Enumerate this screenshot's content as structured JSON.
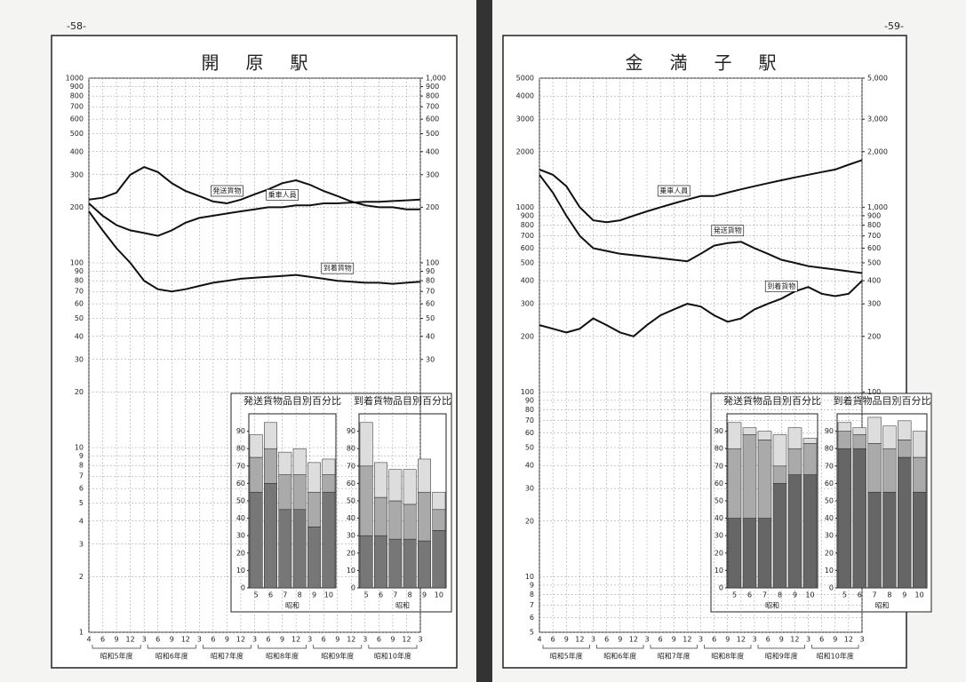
{
  "pages": [
    "-58-",
    "-59-"
  ],
  "chart_data": [
    {
      "type": "line",
      "title": "開原駅",
      "log_y": true,
      "grid": true,
      "categories": [
        "4",
        "6",
        "9",
        "12",
        "3",
        "6",
        "9",
        "12",
        "3",
        "6",
        "9",
        "12",
        "3",
        "6",
        "9",
        "12",
        "3",
        "6",
        "9",
        "12",
        "3",
        "6",
        "9",
        "12",
        "3"
      ],
      "periods": [
        "昭和5年度",
        "昭和6年度",
        "昭和7年度",
        "昭和8年度",
        "昭和9年度",
        "昭和10年度"
      ],
      "ylim": [
        1,
        1000
      ],
      "y2lim": [
        1,
        1000
      ],
      "yticks": [
        1000,
        900,
        800,
        700,
        600,
        500,
        400,
        300,
        200,
        100,
        90,
        80,
        70,
        60,
        50,
        40,
        30,
        20,
        10,
        9,
        8,
        7,
        6,
        5,
        4,
        3,
        2,
        1
      ],
      "y2ticks": [
        {
          "value": 1000,
          "label": "1,000"
        },
        900,
        800,
        700,
        600,
        500,
        400,
        300,
        200,
        100,
        90,
        80,
        70,
        60,
        50,
        40,
        30
      ],
      "series": [
        {
          "name": "発送貨物",
          "color": "#111",
          "values": [
            220,
            225,
            240,
            300,
            330,
            310,
            270,
            245,
            230,
            215,
            210,
            220,
            235,
            250,
            270,
            280,
            265,
            245,
            230,
            215,
            205,
            200,
            200,
            195,
            195
          ]
        },
        {
          "name": "乗車人員",
          "color": "#111",
          "values": [
            210,
            180,
            160,
            150,
            145,
            140,
            150,
            165,
            175,
            180,
            185,
            190,
            195,
            200,
            200,
            205,
            205,
            210,
            210,
            212,
            214,
            214,
            216,
            218,
            220
          ]
        },
        {
          "name": "到着貨物",
          "color": "#111",
          "values": [
            190,
            150,
            120,
            100,
            80,
            72,
            70,
            72,
            75,
            78,
            80,
            82,
            83,
            84,
            85,
            86,
            84,
            82,
            80,
            79,
            78,
            78,
            77,
            78,
            79
          ]
        }
      ]
    },
    {
      "type": "line",
      "title": "金満子駅",
      "log_y": true,
      "grid": true,
      "categories": [
        "4",
        "6",
        "9",
        "12",
        "3",
        "6",
        "9",
        "12",
        "3",
        "6",
        "9",
        "12",
        "3",
        "6",
        "9",
        "12",
        "3",
        "6",
        "9",
        "12",
        "3",
        "6",
        "9",
        "12",
        "3"
      ],
      "periods": [
        "昭和5年度",
        "昭和6年度",
        "昭和7年度",
        "昭和8年度",
        "昭和9年度",
        "昭和10年度"
      ],
      "ylim": [
        5,
        5000
      ],
      "y2lim": [
        5,
        5000
      ],
      "yticks": [
        5000,
        4000,
        3000,
        2000,
        1000,
        900,
        800,
        700,
        600,
        500,
        400,
        300,
        200,
        100,
        90,
        80,
        70,
        60,
        50,
        40,
        30,
        20,
        10,
        9,
        8,
        7,
        6,
        5
      ],
      "y2ticks": [
        {
          "value": 5000,
          "label": "5,000"
        },
        {
          "value": 3000,
          "label": "3,000"
        },
        {
          "value": 2000,
          "label": "2,000"
        },
        {
          "value": 1000,
          "label": "1,000"
        },
        900,
        800,
        700,
        600,
        500,
        400,
        300,
        200,
        100
      ],
      "series": [
        {
          "name": "乗車人員",
          "color": "#111",
          "values": [
            1600,
            1500,
            1300,
            1000,
            850,
            830,
            850,
            900,
            950,
            1000,
            1050,
            1100,
            1150,
            1150,
            1200,
            1250,
            1300,
            1350,
            1400,
            1450,
            1500,
            1550,
            1600,
            1700,
            1800
          ]
        },
        {
          "name": "発送貨物",
          "color": "#111",
          "values": [
            1500,
            1200,
            900,
            700,
            600,
            580,
            560,
            550,
            540,
            530,
            520,
            510,
            560,
            620,
            640,
            650,
            600,
            560,
            520,
            500,
            480,
            470,
            460,
            450,
            440
          ]
        },
        {
          "name": "到着貨物",
          "color": "#111",
          "values": [
            230,
            220,
            210,
            220,
            250,
            230,
            210,
            200,
            230,
            260,
            280,
            300,
            290,
            260,
            240,
            250,
            280,
            300,
            320,
            350,
            370,
            340,
            330,
            340,
            400
          ]
        }
      ]
    },
    {
      "type": "bar",
      "stacked": true,
      "title": "発送貨物品目別百分比",
      "xlabel": "昭和",
      "categories": [
        "5",
        "6",
        "7",
        "8",
        "9",
        "10"
      ],
      "ylim": [
        0,
        100
      ],
      "yticks": [
        0,
        10,
        20,
        30,
        40,
        50,
        60,
        70,
        80,
        90
      ],
      "series": [
        {
          "color": "#777",
          "values": [
            55,
            60,
            45,
            45,
            35,
            55
          ]
        },
        {
          "color": "#aaa",
          "values": [
            20,
            20,
            20,
            20,
            20,
            10
          ]
        },
        {
          "color": "#ddd",
          "values": [
            13,
            15,
            13,
            15,
            17,
            9
          ]
        }
      ]
    },
    {
      "type": "bar",
      "stacked": true,
      "title": "到着貨物品目別百分比",
      "xlabel": "昭和",
      "categories": [
        "5",
        "6",
        "7",
        "8",
        "9",
        "10"
      ],
      "ylim": [
        0,
        100
      ],
      "yticks": [
        0,
        10,
        20,
        30,
        40,
        50,
        60,
        70,
        80,
        90
      ],
      "series": [
        {
          "color": "#777",
          "values": [
            30,
            30,
            28,
            28,
            27,
            33
          ]
        },
        {
          "color": "#aaa",
          "values": [
            40,
            22,
            22,
            20,
            28,
            12
          ]
        },
        {
          "color": "#ddd",
          "values": [
            25,
            20,
            18,
            20,
            19,
            10
          ]
        }
      ]
    },
    {
      "type": "bar",
      "stacked": true,
      "title": "発送貨物品目別百分比",
      "xlabel": "昭和",
      "categories": [
        "5",
        "6",
        "7",
        "8",
        "9",
        "10"
      ],
      "ylim": [
        0,
        100
      ],
      "yticks": [
        0,
        10,
        20,
        30,
        40,
        50,
        60,
        70,
        80,
        90
      ],
      "series": [
        {
          "color": "#666",
          "values": [
            40,
            40,
            40,
            60,
            65,
            65
          ]
        },
        {
          "color": "#aaa",
          "values": [
            40,
            48,
            45,
            10,
            15,
            18
          ]
        },
        {
          "color": "#ddd",
          "values": [
            15,
            4,
            5,
            18,
            12,
            3
          ]
        }
      ]
    },
    {
      "type": "bar",
      "stacked": true,
      "title": "到着貨物品目別百分比",
      "xlabel": "昭和",
      "categories": [
        "5",
        "6",
        "7",
        "8",
        "9",
        "10"
      ],
      "ylim": [
        0,
        100
      ],
      "yticks": [
        0,
        10,
        20,
        30,
        40,
        50,
        60,
        70,
        80,
        90
      ],
      "series": [
        {
          "color": "#666",
          "values": [
            80,
            80,
            55,
            55,
            75,
            55
          ]
        },
        {
          "color": "#aaa",
          "values": [
            10,
            8,
            28,
            25,
            10,
            20
          ]
        },
        {
          "color": "#ddd",
          "values": [
            5,
            4,
            15,
            13,
            11,
            15
          ]
        }
      ]
    }
  ]
}
